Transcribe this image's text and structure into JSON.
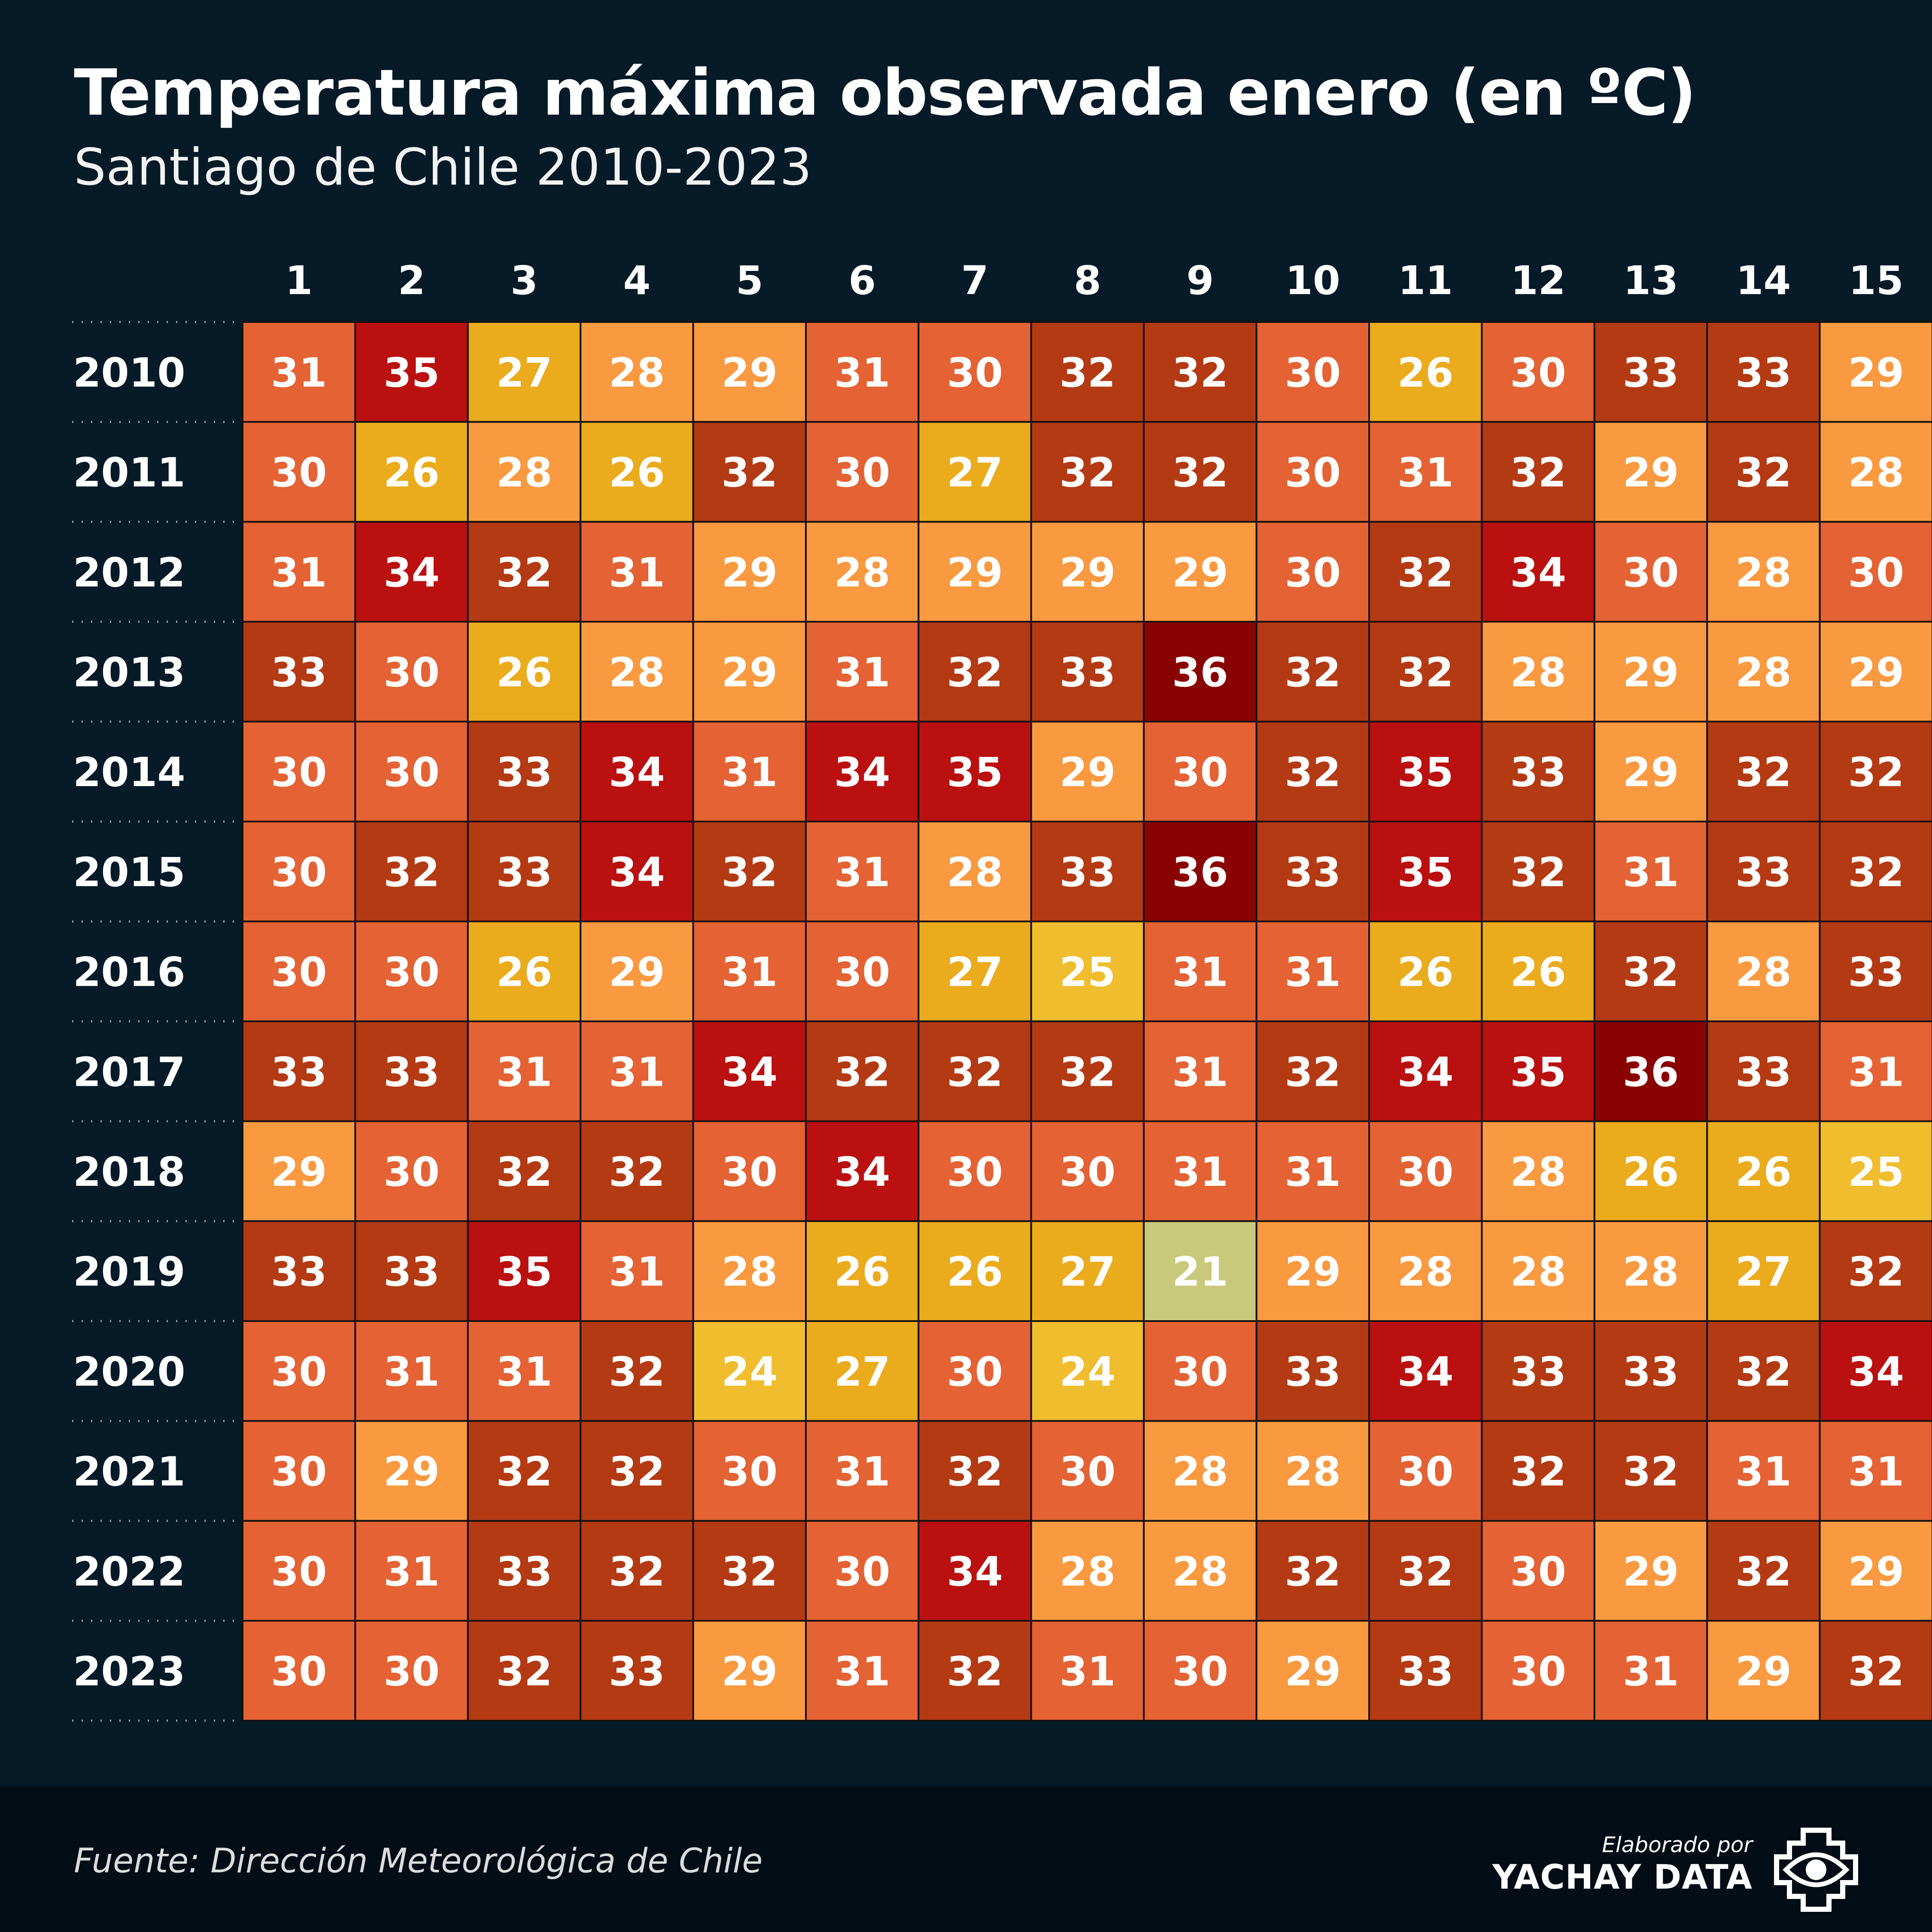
{
  "title": "Temperatura máxima observada enero (en ºC)",
  "subtitle": "Santiago de Chile 2010-2023",
  "source": "Fuente: Dirección Meteorológica de Chile",
  "credit": {
    "line1": "Elaborado por",
    "line2": "YACHAY DATA",
    "logo_icon": "eye-icon"
  },
  "colors": {
    "background": "#071a27",
    "footer": "#030d16",
    "scale": {
      "21": "#c8c97a",
      "24": "#f0bd2e",
      "25": "#f0bd2e",
      "26": "#eaab1c",
      "27": "#eaab1c",
      "28": "#f99940",
      "29": "#f99940",
      "30": "#e46233",
      "31": "#e46233",
      "32": "#b43a14",
      "33": "#b43a14",
      "34": "#bb1010",
      "35": "#bb1010",
      "36": "#8a0303"
    }
  },
  "chart_data": {
    "type": "heatmap",
    "title": "Temperatura máxima observada enero (en ºC)",
    "subtitle": "Santiago de Chile 2010-2023",
    "x": [
      "1",
      "2",
      "3",
      "4",
      "5",
      "6",
      "7",
      "8",
      "9",
      "10",
      "11",
      "12",
      "13",
      "14",
      "15"
    ],
    "y": [
      "2010",
      "2011",
      "2012",
      "2013",
      "2014",
      "2015",
      "2016",
      "2017",
      "2018",
      "2019",
      "2020",
      "2021",
      "2022",
      "2023"
    ],
    "values": [
      [
        31,
        35,
        27,
        28,
        29,
        31,
        30,
        32,
        32,
        30,
        26,
        30,
        33,
        33,
        29
      ],
      [
        30,
        26,
        28,
        26,
        32,
        30,
        27,
        32,
        32,
        30,
        31,
        32,
        29,
        32,
        28
      ],
      [
        31,
        34,
        32,
        31,
        29,
        28,
        29,
        29,
        29,
        30,
        32,
        34,
        30,
        28,
        30
      ],
      [
        33,
        30,
        26,
        28,
        29,
        31,
        32,
        33,
        36,
        32,
        32,
        28,
        29,
        28,
        29
      ],
      [
        30,
        30,
        33,
        34,
        31,
        34,
        35,
        29,
        30,
        32,
        35,
        33,
        29,
        32,
        32
      ],
      [
        30,
        32,
        33,
        34,
        32,
        31,
        28,
        33,
        36,
        33,
        35,
        32,
        31,
        33,
        32
      ],
      [
        30,
        30,
        26,
        29,
        31,
        30,
        27,
        25,
        31,
        31,
        26,
        26,
        32,
        28,
        33
      ],
      [
        33,
        33,
        31,
        31,
        34,
        32,
        32,
        32,
        31,
        32,
        34,
        35,
        36,
        33,
        31
      ],
      [
        29,
        30,
        32,
        32,
        30,
        34,
        30,
        30,
        31,
        31,
        30,
        28,
        26,
        26,
        25
      ],
      [
        33,
        33,
        35,
        31,
        28,
        26,
        26,
        27,
        21,
        29,
        28,
        28,
        28,
        27,
        32
      ],
      [
        30,
        31,
        31,
        32,
        24,
        27,
        30,
        24,
        30,
        33,
        34,
        33,
        33,
        32,
        34
      ],
      [
        30,
        29,
        32,
        32,
        30,
        31,
        32,
        30,
        28,
        28,
        30,
        32,
        32,
        31,
        31
      ],
      [
        30,
        31,
        33,
        32,
        32,
        30,
        34,
        28,
        28,
        32,
        32,
        30,
        29,
        32,
        29
      ],
      [
        30,
        30,
        32,
        33,
        29,
        31,
        32,
        31,
        30,
        29,
        33,
        30,
        31,
        29,
        32
      ]
    ]
  }
}
